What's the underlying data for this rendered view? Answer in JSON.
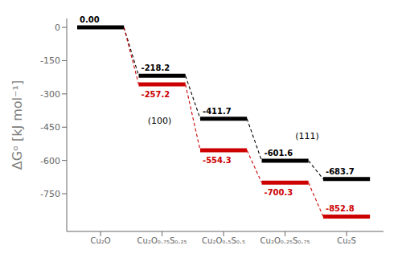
{
  "chart_data": {
    "type": "levels",
    "ylabel": "ΔGᵒ [kJ mol⁻¹]",
    "categories": [
      "Cu₂O",
      "Cu₂O₀.₇₅S₀.₂₅",
      "Cu₂O₀.₅S₀.₅",
      "Cu₂O₀.₂₅S₀.₇₅",
      "Cu₂S"
    ],
    "series": [
      {
        "color": "#000000",
        "values": [
          0.0,
          -218.2,
          -411.7,
          -601.6,
          -683.7
        ],
        "value_labels": [
          "0.00",
          "-218.2",
          "-411.7",
          "-601.6",
          "-683.7"
        ],
        "line_style": "dashed"
      },
      {
        "color": "#cc0000",
        "values": [
          null,
          -257.2,
          -554.3,
          -700.3,
          -852.8
        ],
        "value_labels": [
          null,
          "-257.2",
          "-554.3",
          "-700.3",
          "-852.8"
        ],
        "line_style": "dashed"
      }
    ],
    "annotations": [
      "(100)",
      "(111)"
    ],
    "ylim": [
      -920,
      40
    ],
    "yticks": [
      0,
      -150,
      -300,
      -450,
      -600,
      -750
    ],
    "data_labels": true,
    "grid": false
  }
}
